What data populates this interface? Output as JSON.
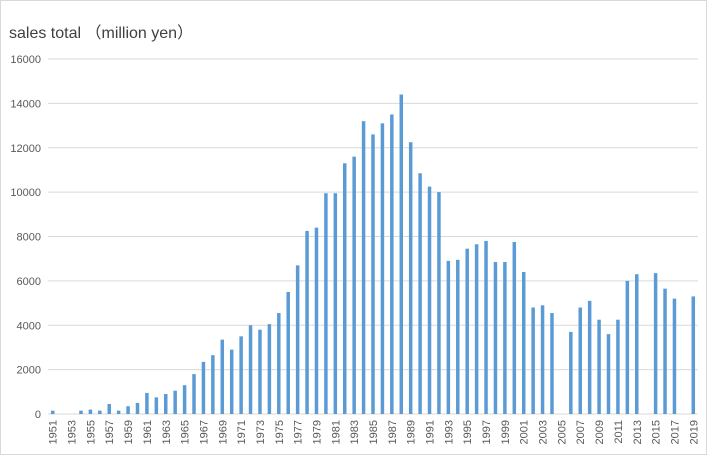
{
  "chart_data": {
    "type": "bar",
    "title": "sales total （million yen）",
    "xlabel": "",
    "ylabel": "",
    "ylim": [
      0,
      16000
    ],
    "yticks": [
      0,
      2000,
      4000,
      6000,
      8000,
      10000,
      12000,
      14000,
      16000
    ],
    "grid": true,
    "bar_color": "#5b9bd5",
    "categories": [
      "1951",
      "1952",
      "1953",
      "1954",
      "1955",
      "1956",
      "1957",
      "1958",
      "1959",
      "1960",
      "1961",
      "1962",
      "1963",
      "1964",
      "1965",
      "1966",
      "1967",
      "1968",
      "1969",
      "1970",
      "1971",
      "1972",
      "1973",
      "1974",
      "1975",
      "1976",
      "1977",
      "1978",
      "1979",
      "1980",
      "1981",
      "1982",
      "1983",
      "1984",
      "1985",
      "1986",
      "1987",
      "1988",
      "1989",
      "1990",
      "1991",
      "1992",
      "1993",
      "1994",
      "1995",
      "1996",
      "1997",
      "1998",
      "1999",
      "2000",
      "2001",
      "2002",
      "2003",
      "2004",
      "2005",
      "2006",
      "2007",
      "2008",
      "2009",
      "2010",
      "2011",
      "2012",
      "2013",
      "2014",
      "2015",
      "2016",
      "2017",
      "2018",
      "2019"
    ],
    "values": [
      150,
      0,
      0,
      150,
      200,
      150,
      450,
      150,
      350,
      500,
      950,
      750,
      900,
      1050,
      1300,
      1800,
      2350,
      2650,
      3350,
      2900,
      3500,
      4000,
      3800,
      4050,
      4550,
      5500,
      6700,
      8250,
      8400,
      9950,
      9950,
      11300,
      11600,
      13200,
      12600,
      13100,
      13500,
      14400,
      12250,
      10850,
      10250,
      10000,
      6900,
      6950,
      7450,
      7650,
      7800,
      6850,
      6850,
      7750,
      6400,
      4800,
      4900,
      4550,
      0,
      3700,
      4800,
      5100,
      4250,
      3600,
      4250,
      6000,
      6300,
      0,
      6350,
      5650,
      5200,
      0,
      5300
    ]
  }
}
